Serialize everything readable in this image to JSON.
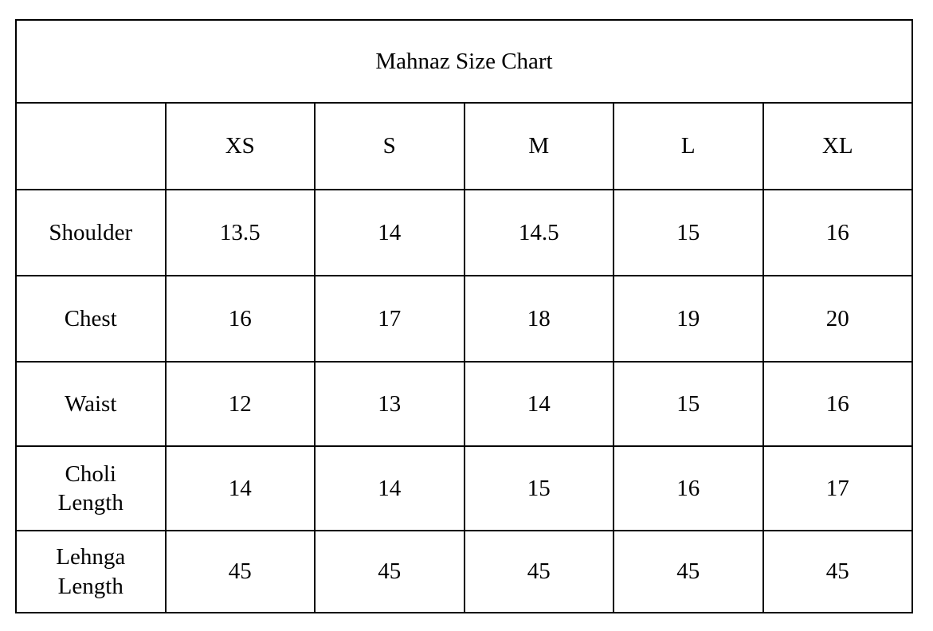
{
  "page": {
    "background_color": "#ffffff",
    "border_color": "#000000",
    "text_color": "#000000"
  },
  "chart_data": {
    "type": "table",
    "title": "Mahnaz Size Chart",
    "columns": [
      "",
      "XS",
      "S",
      "M",
      "L",
      "XL"
    ],
    "rows": [
      {
        "label": "Shoulder",
        "values": [
          "13.5",
          "14",
          "14.5",
          "15",
          "16"
        ]
      },
      {
        "label": "Chest",
        "values": [
          "16",
          "17",
          "18",
          "19",
          "20"
        ]
      },
      {
        "label": "Waist",
        "values": [
          "12",
          "13",
          "14",
          "15",
          "16"
        ]
      },
      {
        "label": "Choli Length",
        "values": [
          "14",
          "14",
          "15",
          "16",
          "17"
        ]
      },
      {
        "label": "Lehnga Length",
        "values": [
          "45",
          "45",
          "45",
          "45",
          "45"
        ]
      }
    ]
  }
}
